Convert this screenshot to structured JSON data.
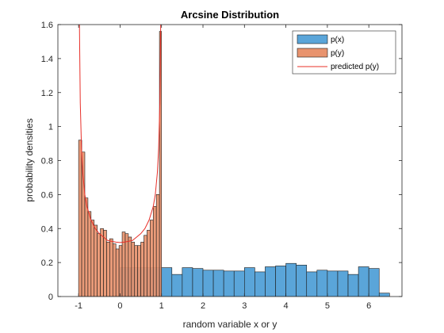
{
  "chart_data": {
    "type": "bar",
    "title": "Arcsine Distribution",
    "xlabel": "random variable x or y",
    "ylabel": "probability densities",
    "xlim": [
      -1.5,
      6.8
    ],
    "ylim": [
      0,
      1.6
    ],
    "xticks": [
      -1,
      0,
      1,
      2,
      3,
      4,
      5,
      6
    ],
    "xtick_labels": [
      "-1",
      "0",
      "1",
      "2",
      "3",
      "4",
      "5",
      "6"
    ],
    "yticks": [
      0,
      0.2,
      0.4,
      0.6,
      0.8,
      1,
      1.2,
      1.4,
      1.6
    ],
    "ytick_labels": [
      "0",
      "0.2",
      "0.4",
      "0.6",
      "0.8",
      "1",
      "1.2",
      "1.4",
      "1.6"
    ],
    "grid": false,
    "legend_position": "top-right",
    "series": [
      {
        "name": "p(x)",
        "kind": "histogram",
        "color": "#5aa5d9",
        "edge_color": "#1a1a1a",
        "bin_edges": [
          0,
          0.25,
          0.5,
          0.75,
          1.0,
          1.25,
          1.5,
          1.75,
          2.0,
          2.25,
          2.5,
          2.75,
          3.0,
          3.25,
          3.5,
          3.75,
          4.0,
          4.25,
          4.5,
          4.75,
          5.0,
          5.25,
          5.5,
          5.75,
          6.0,
          6.25,
          6.5
        ],
        "values": [
          0.17,
          0.17,
          0.17,
          0.17,
          0.17,
          0.13,
          0.17,
          0.165,
          0.155,
          0.155,
          0.15,
          0.15,
          0.17,
          0.145,
          0.175,
          0.18,
          0.195,
          0.185,
          0.145,
          0.155,
          0.15,
          0.15,
          0.13,
          0.175,
          0.165,
          0.02
        ]
      },
      {
        "name": "p(y)",
        "kind": "histogram",
        "color": "#e8936e",
        "edge_color": "#1a1a1a",
        "bin_edges": [
          -1.0,
          -0.925,
          -0.85,
          -0.775,
          -0.7,
          -0.625,
          -0.55,
          -0.475,
          -0.4,
          -0.325,
          -0.25,
          -0.175,
          -0.1,
          -0.025,
          0.05,
          0.125,
          0.2,
          0.275,
          0.35,
          0.425,
          0.5,
          0.575,
          0.65,
          0.725,
          0.8,
          0.875,
          0.95,
          1.0
        ],
        "values": [
          0.92,
          0.85,
          0.58,
          0.5,
          0.45,
          0.42,
          0.37,
          0.4,
          0.39,
          0.32,
          0.34,
          0.31,
          0.28,
          0.3,
          0.38,
          0.37,
          0.35,
          0.32,
          0.3,
          0.3,
          0.32,
          0.36,
          0.39,
          0.45,
          0.53,
          0.6,
          1.56
        ]
      },
      {
        "name": "predicted p(y)",
        "kind": "line",
        "color": "#e8302a",
        "x": [
          -0.99,
          -0.98,
          -0.96,
          -0.93,
          -0.9,
          -0.85,
          -0.8,
          -0.7,
          -0.6,
          -0.5,
          -0.4,
          -0.3,
          -0.2,
          -0.1,
          0,
          0.1,
          0.2,
          0.3,
          0.4,
          0.5,
          0.6,
          0.7,
          0.8,
          0.85,
          0.9,
          0.93,
          0.96,
          0.98,
          0.99
        ],
        "y": [
          2.26,
          1.6,
          1.14,
          0.87,
          0.73,
          0.6,
          0.53,
          0.45,
          0.4,
          0.37,
          0.35,
          0.33,
          0.325,
          0.32,
          0.318,
          0.32,
          0.325,
          0.33,
          0.35,
          0.37,
          0.4,
          0.45,
          0.53,
          0.6,
          0.73,
          0.87,
          1.14,
          1.6,
          2.26
        ]
      }
    ]
  }
}
